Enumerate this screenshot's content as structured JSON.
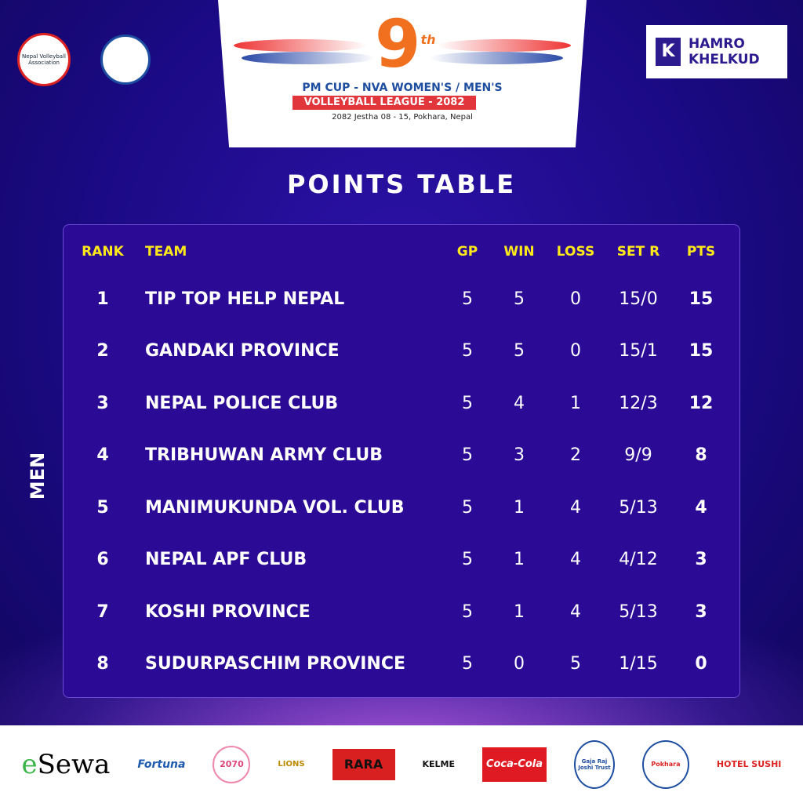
{
  "header": {
    "event_number": "9",
    "event_suffix": "th",
    "line1": "PM CUP - NVA WOMEN'S / MEN'S",
    "line2": "VOLLEYBALL LEAGUE - 2082",
    "line3": "2082 Jestha 08 - 15, Pokhara, Nepal",
    "partner": {
      "line1": "HAMRO",
      "line2": "KHELKUD"
    },
    "logo_left_1": "Nepal Volleyball Association",
    "colors": {
      "background": "#1b0a85",
      "panel": "#2b0a95",
      "header_text": "#ffe81a",
      "banner_red": "#e0363c"
    }
  },
  "title": "POINTS TABLE",
  "category": "MEN",
  "table": {
    "columns": [
      "RANK",
      "TEAM",
      "GP",
      "WIN",
      "LOSS",
      "SET R",
      "PTS"
    ],
    "rows": [
      [
        "1",
        "TIP TOP HELP NEPAL",
        "5",
        "5",
        "0",
        "15/0",
        "15"
      ],
      [
        "2",
        "GANDAKI PROVINCE",
        "5",
        "5",
        "0",
        "15/1",
        "15"
      ],
      [
        "3",
        "NEPAL POLICE CLUB",
        "5",
        "4",
        "1",
        "12/3",
        "12"
      ],
      [
        "4",
        "TRIBHUWAN ARMY CLUB",
        "5",
        "3",
        "2",
        "9/9",
        "8"
      ],
      [
        "5",
        "MANIMUKUNDA VOL. CLUB",
        "5",
        "1",
        "4",
        "5/13",
        "4"
      ],
      [
        "6",
        "NEPAL APF CLUB",
        "5",
        "1",
        "4",
        "4/12",
        "3"
      ],
      [
        "7",
        "KOSHI PROVINCE",
        "5",
        "1",
        "4",
        "5/13",
        "3"
      ],
      [
        "8",
        "SUDURPASCHIM PROVINCE",
        "5",
        "0",
        "5",
        "1/15",
        "0"
      ]
    ]
  },
  "sponsors": [
    "eSewa",
    "Fortuna",
    "2070",
    "LIONS",
    "RARA",
    "KELME",
    "Coca-Cola",
    "Gaja Raj Joshi Trust",
    "Pokhara",
    "HOTEL SUSHI"
  ]
}
